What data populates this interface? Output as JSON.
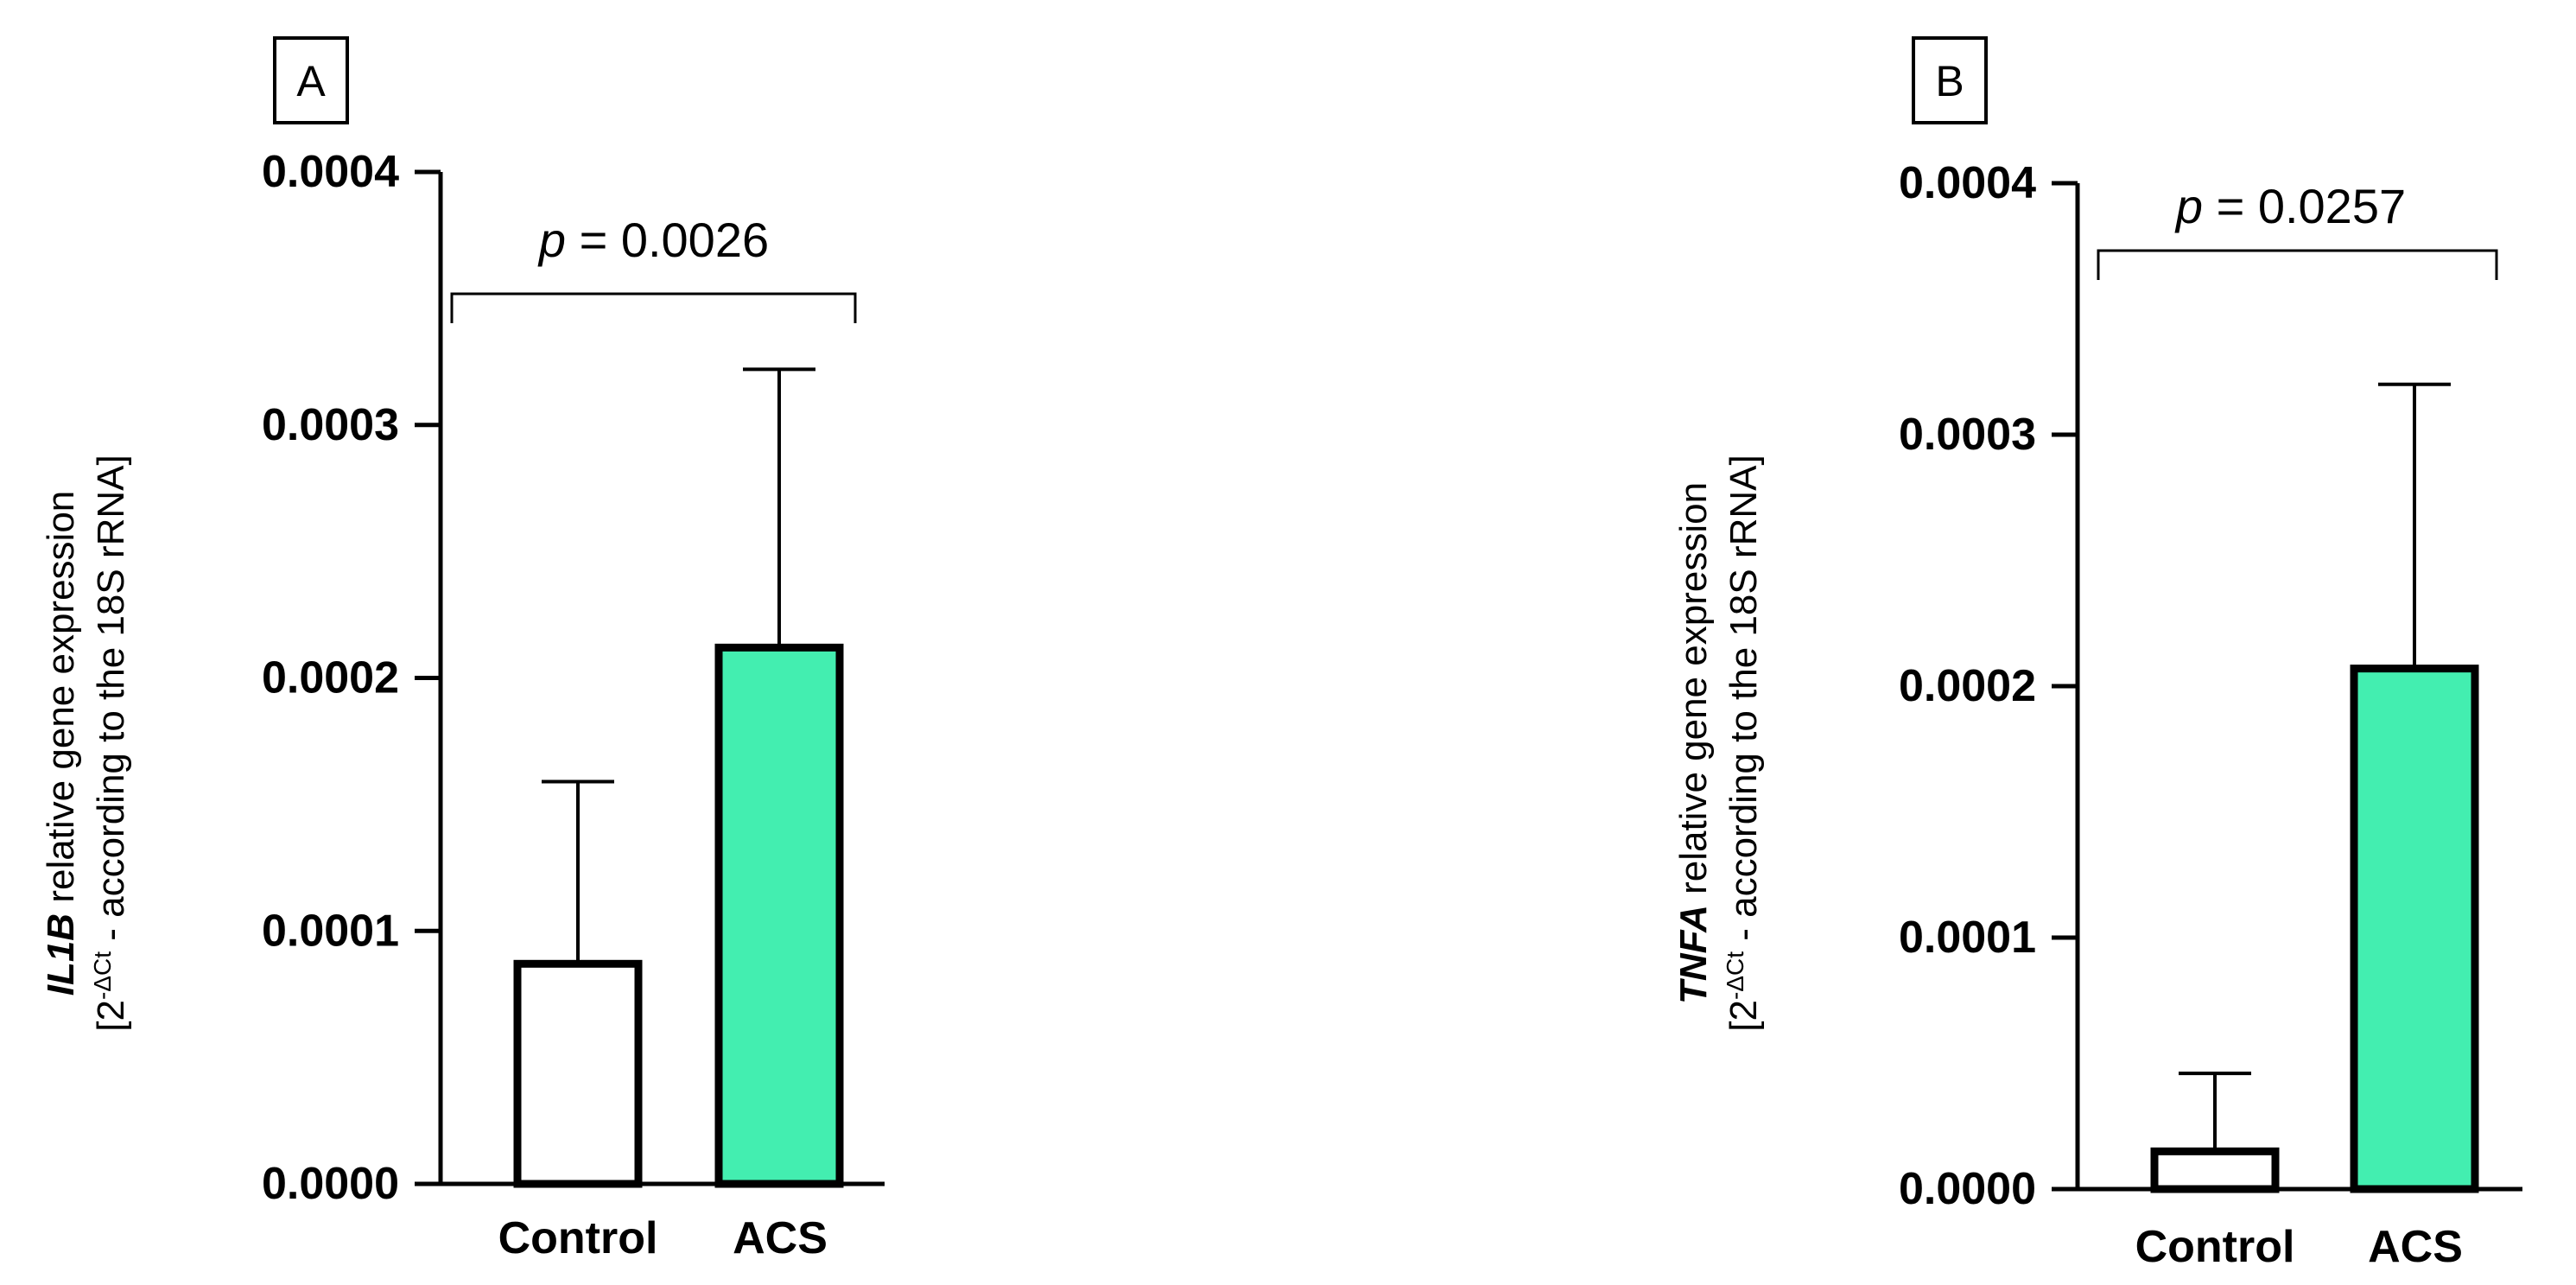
{
  "chart_data": [
    {
      "type": "bar",
      "panel_label": "A",
      "categories": [
        "Control",
        "ACS"
      ],
      "values": [
        8.7e-05,
        0.000212
      ],
      "error_upper": [
        0.000159,
        0.000322
      ],
      "bar_fills": [
        "#ffffff",
        "#43eeb0"
      ],
      "ylim": [
        0,
        0.0004
      ],
      "yticks": [
        "0.0000",
        "0.0001",
        "0.0002",
        "0.0003",
        "0.0004"
      ],
      "ylabel": {
        "gene": "IL1B",
        "line1_rest": " relative gene expression",
        "line2_open": "[2",
        "line2_sup": "-ΔCt",
        "line2_rest": " - according to the 18S rRNA]"
      },
      "p_value": {
        "p": "p",
        "rest": " = 0.0026"
      }
    },
    {
      "type": "bar",
      "panel_label": "B",
      "categories": [
        "Control",
        "ACS"
      ],
      "values": [
        1.5e-05,
        0.000207
      ],
      "error_upper": [
        4.6e-05,
        0.00032
      ],
      "bar_fills": [
        "#ffffff",
        "#43eeb0"
      ],
      "ylim": [
        0,
        0.0004
      ],
      "yticks": [
        "0.0000",
        "0.0001",
        "0.0002",
        "0.0003",
        "0.0004"
      ],
      "ylabel": {
        "gene": "TNFA",
        "line1_rest": " relative gene expression",
        "line2_open": "[2",
        "line2_sup": "-ΔCt",
        "line2_rest": " - according to the 18S rRNA]"
      },
      "p_value": {
        "p": "p",
        "rest": " = 0.0257"
      }
    }
  ]
}
